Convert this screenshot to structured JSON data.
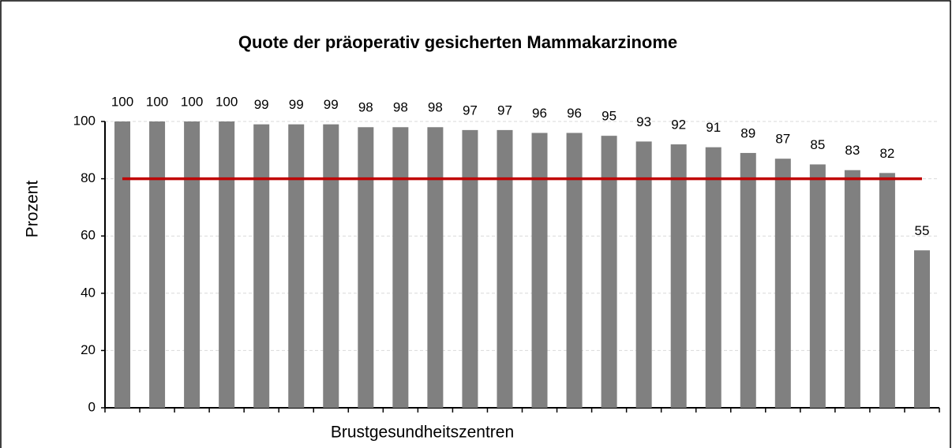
{
  "chart_data": {
    "type": "bar",
    "title": "Quote der präoperativ gesicherten Mammakarzinome",
    "y_label": "Prozent",
    "x_label": "Brustgesundheitszentren",
    "categories": [
      null,
      null,
      null,
      null,
      null,
      null,
      null,
      null,
      null,
      null,
      null,
      null,
      null,
      null,
      null,
      null,
      null,
      null,
      null,
      null,
      null,
      null,
      null,
      null
    ],
    "values": [
      100,
      100,
      100,
      100,
      99,
      99,
      99,
      98,
      98,
      98,
      97,
      97,
      96,
      96,
      95,
      93,
      92,
      91,
      89,
      87,
      85,
      83,
      82,
      55
    ],
    "color": "#808080",
    "reference_line": 80,
    "reference_color": "#c00000",
    "ylim": [
      0,
      100
    ],
    "yticks": [
      0,
      20,
      40,
      60,
      80,
      100
    ],
    "grid": true
  }
}
